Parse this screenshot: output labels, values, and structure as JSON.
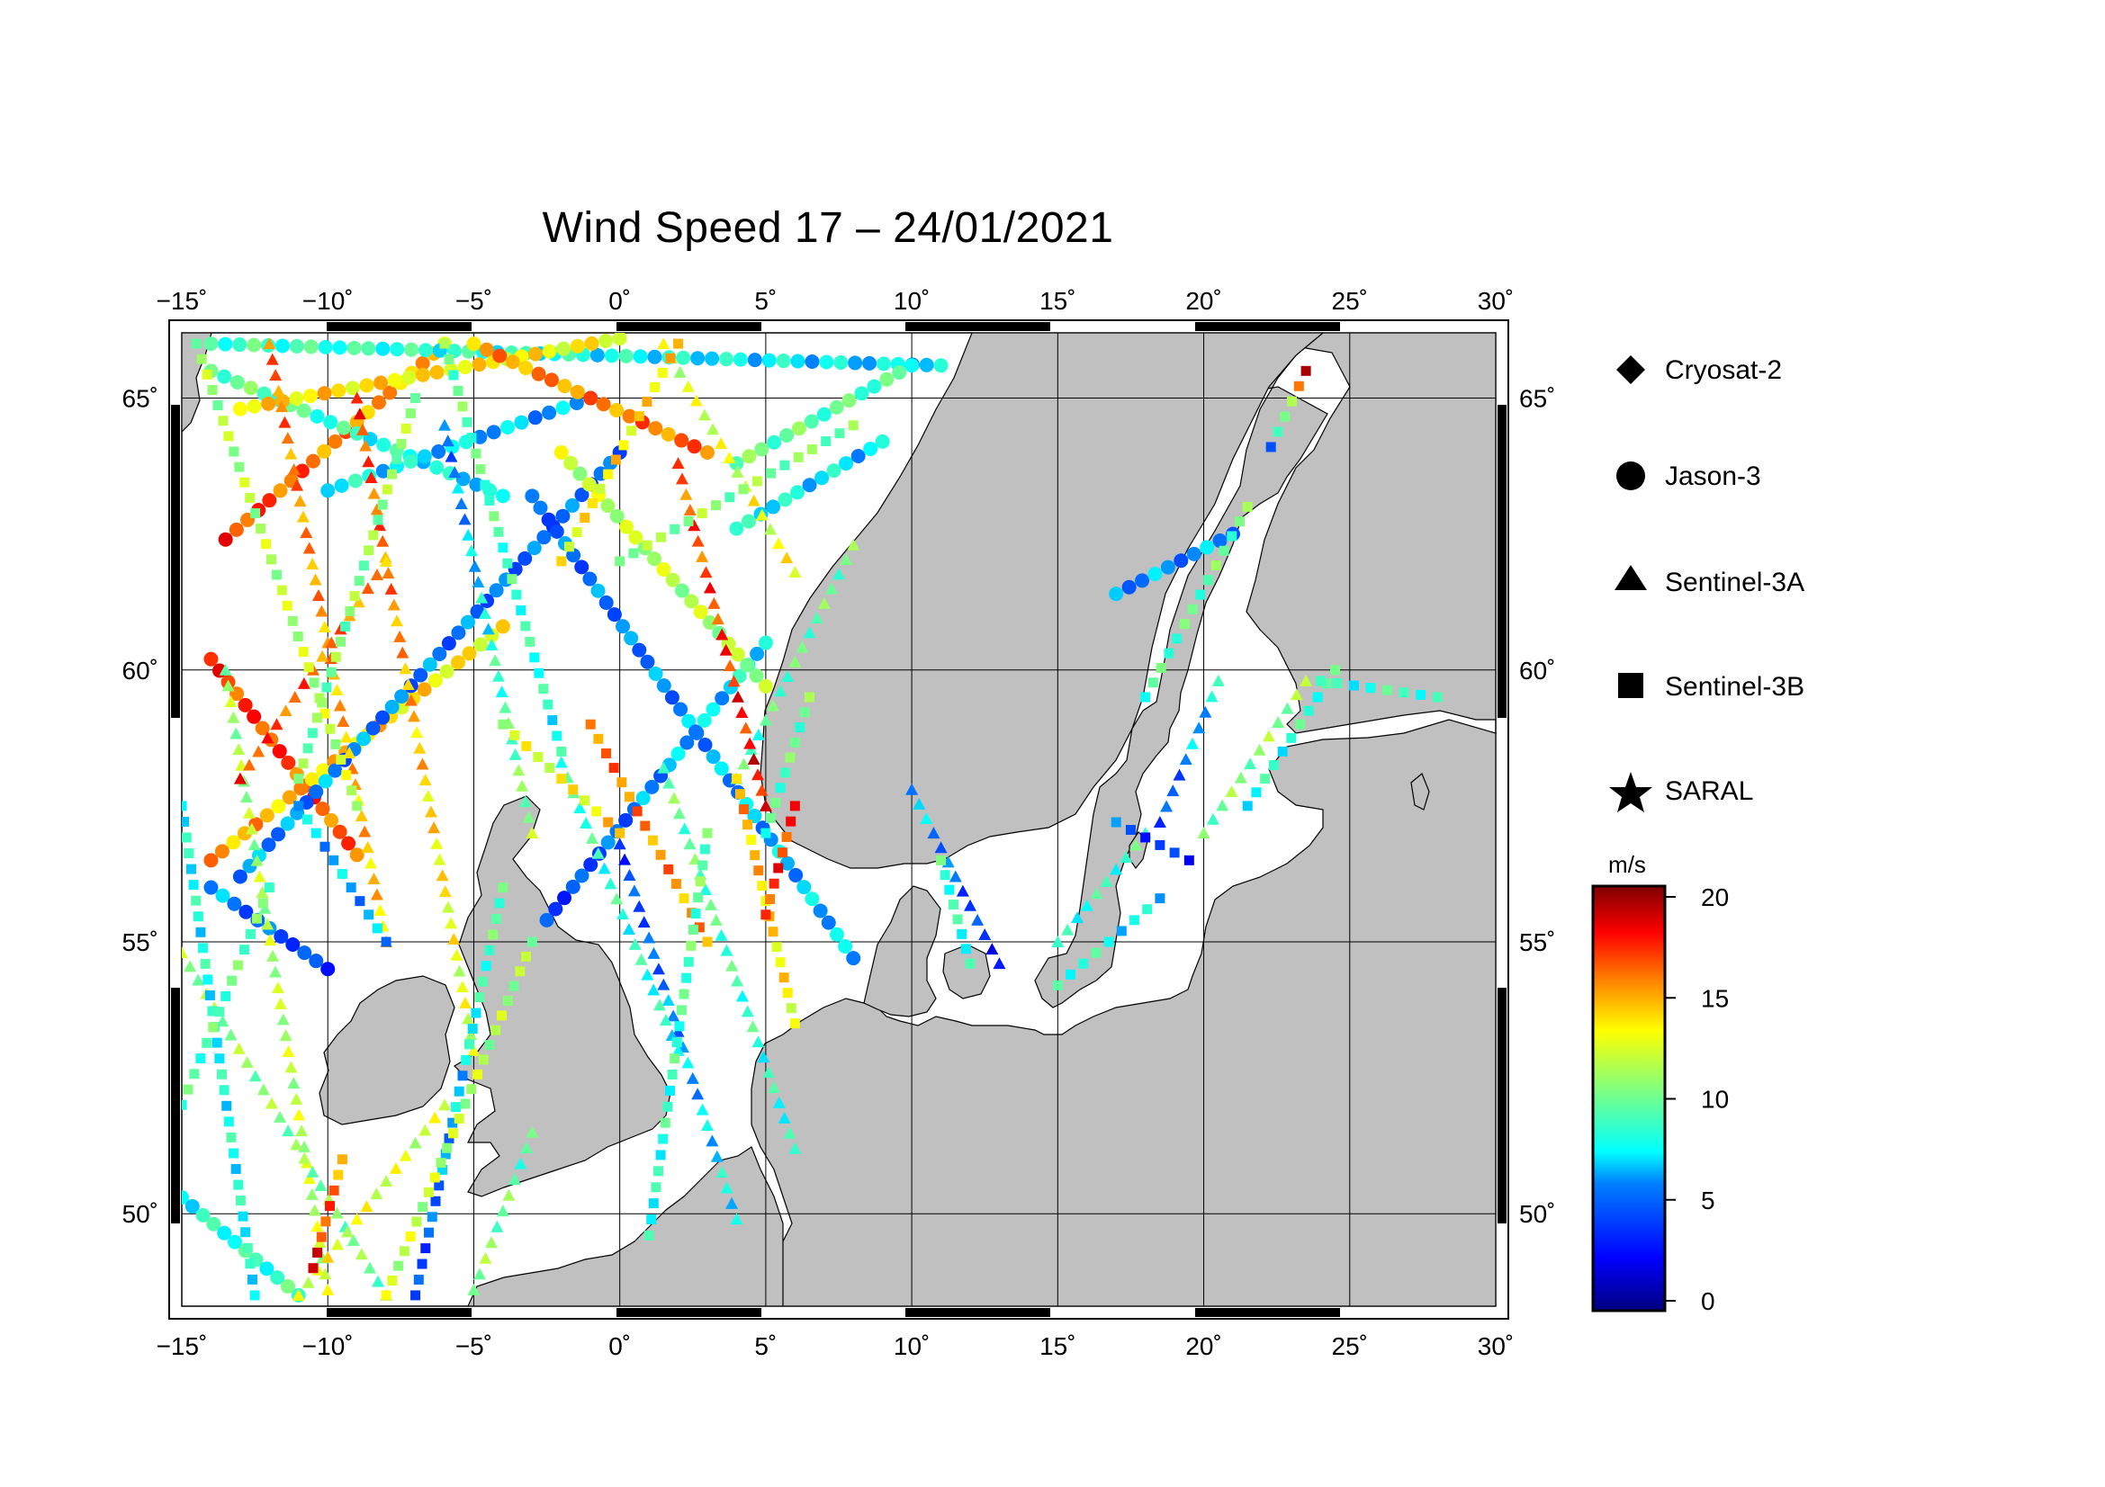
{
  "title": "Wind Speed 17 – 24/01/2021",
  "map": {
    "lon_range": [
      -15,
      30
    ],
    "lat_range": [
      48.3,
      66.2
    ],
    "lon_ticks": [
      -15,
      -10,
      -5,
      0,
      5,
      10,
      15,
      20,
      25,
      30
    ],
    "lon_tick_labels": [
      "−15˚",
      "−10˚",
      "−5˚",
      "0˚",
      "5˚",
      "10˚",
      "15˚",
      "20˚",
      "25˚",
      "30˚"
    ],
    "lat_ticks": [
      50,
      55,
      60,
      65
    ],
    "lat_tick_labels": [
      "50˚",
      "55˚",
      "60˚",
      "65˚"
    ],
    "land_color": "#c0c0c0",
    "sea_color": "#ffffff",
    "grid": true
  },
  "legend": {
    "items": [
      {
        "label": "Cryosat-2",
        "symbol": "diamond-icon"
      },
      {
        "label": "Jason-3",
        "symbol": "circle-icon"
      },
      {
        "label": "Sentinel-3A",
        "symbol": "triangle-icon"
      },
      {
        "label": "Sentinel-3B",
        "symbol": "square-icon"
      },
      {
        "label": "SARAL",
        "symbol": "star-icon"
      }
    ]
  },
  "colorbar": {
    "unit": "m/s",
    "min": 0,
    "max": 20,
    "tick_labels": [
      "20",
      "15",
      "10",
      "5",
      "0"
    ],
    "colors": [
      "#7f0000",
      "#ff0000",
      "#ff8000",
      "#ffff00",
      "#80ff80",
      "#00ffff",
      "#0080ff",
      "#0000ff",
      "#00007f"
    ]
  },
  "tracks": [
    {
      "sat": "Jason-3",
      "start": [
        -14,
        60.2
      ],
      "end": [
        -9,
        56.6
      ],
      "v0": 17,
      "v1": 16
    },
    {
      "sat": "Jason-3",
      "start": [
        -14,
        56.5
      ],
      "end": [
        -4,
        60.8
      ],
      "v0": 15,
      "v1": 13
    },
    {
      "sat": "Jason-3",
      "start": [
        -13.5,
        62.4
      ],
      "end": [
        -6,
        66.0
      ],
      "v0": 17,
      "v1": 14
    },
    {
      "sat": "Jason-3",
      "start": [
        -14,
        65.5
      ],
      "end": [
        -4,
        63.2
      ],
      "v0": 10,
      "v1": 7
    },
    {
      "sat": "Jason-3",
      "start": [
        -10,
        63.3
      ],
      "end": [
        -1,
        65.0
      ],
      "v0": 8,
      "v1": 6
    },
    {
      "sat": "Jason-3",
      "start": [
        -13,
        56.2
      ],
      "end": [
        0,
        64.0
      ],
      "v0": 6,
      "v1": 5
    },
    {
      "sat": "Jason-3",
      "start": [
        -14,
        56.0
      ],
      "end": [
        -10,
        54.5
      ],
      "v0": 6,
      "v1": 4
    },
    {
      "sat": "Jason-3",
      "start": [
        -3,
        63.2
      ],
      "end": [
        8,
        54.7
      ],
      "v0": 5,
      "v1": 7
    },
    {
      "sat": "Jason-3",
      "start": [
        -2.5,
        55.4
      ],
      "end": [
        5,
        60.5
      ],
      "v0": 4,
      "v1": 8
    },
    {
      "sat": "Jason-3",
      "start": [
        -14,
        66.0
      ],
      "end": [
        11,
        65.6
      ],
      "v0": 9,
      "v1": 7
    },
    {
      "sat": "Jason-3",
      "start": [
        -13,
        64.8
      ],
      "end": [
        0,
        66.1
      ],
      "v0": 14,
      "v1": 13
    },
    {
      "sat": "Jason-3",
      "start": [
        -5,
        66.0
      ],
      "end": [
        3,
        64.0
      ],
      "v0": 15,
      "v1": 16
    },
    {
      "sat": "Jason-3",
      "start": [
        4,
        63.8
      ],
      "end": [
        10,
        65.6
      ],
      "v0": 10,
      "v1": 9
    },
    {
      "sat": "Jason-3",
      "start": [
        4,
        62.6
      ],
      "end": [
        9,
        64.2
      ],
      "v0": 8,
      "v1": 7
    },
    {
      "sat": "Jason-3",
      "start": [
        -2,
        64.0
      ],
      "end": [
        5,
        59.7
      ],
      "v0": 12,
      "v1": 11
    },
    {
      "sat": "Jason-3",
      "start": [
        17,
        61.4
      ],
      "end": [
        21,
        62.5
      ],
      "v0": 6,
      "v1": 6
    },
    {
      "sat": "Jason-3",
      "start": [
        -15,
        50.3
      ],
      "end": [
        -11,
        48.5
      ],
      "v0": 8,
      "v1": 9
    },
    {
      "sat": "Sentinel-3A",
      "start": [
        -13.5,
        60.0
      ],
      "end": [
        -10,
        48.6
      ],
      "v0": 11,
      "v1": 12
    },
    {
      "sat": "Sentinel-3A",
      "start": [
        -12,
        66.0
      ],
      "end": [
        -8,
        55.0
      ],
      "v0": 16,
      "v1": 14
    },
    {
      "sat": "Sentinel-3A",
      "start": [
        -9,
        65.0
      ],
      "end": [
        -5,
        53.0
      ],
      "v0": 17,
      "v1": 12
    },
    {
      "sat": "Sentinel-3A",
      "start": [
        -6,
        64.5
      ],
      "end": [
        -3,
        57.0
      ],
      "v0": 5,
      "v1": 11
    },
    {
      "sat": "Sentinel-3A",
      "start": [
        -13,
        58.0
      ],
      "end": [
        -8,
        62.0
      ],
      "v0": 17,
      "v1": 15
    },
    {
      "sat": "Sentinel-3A",
      "start": [
        0,
        56.8
      ],
      "end": [
        4,
        49.9
      ],
      "v0": 4,
      "v1": 8
    },
    {
      "sat": "Sentinel-3A",
      "start": [
        1.5,
        58.2
      ],
      "end": [
        6,
        51.2
      ],
      "v0": 10,
      "v1": 8
    },
    {
      "sat": "Sentinel-3A",
      "start": [
        -2,
        58.3
      ],
      "end": [
        2,
        53.0
      ],
      "v0": 9,
      "v1": 8
    },
    {
      "sat": "Sentinel-3A",
      "start": [
        4,
        58.0
      ],
      "end": [
        8,
        62.3
      ],
      "v0": 9,
      "v1": 10
    },
    {
      "sat": "Sentinel-3A",
      "start": [
        2,
        63.8
      ],
      "end": [
        5,
        57.5
      ],
      "v0": 16,
      "v1": 18
    },
    {
      "sat": "Sentinel-3A",
      "start": [
        -15,
        54.8
      ],
      "end": [
        -8,
        48.5
      ],
      "v0": 11,
      "v1": 10
    },
    {
      "sat": "Sentinel-3A",
      "start": [
        -11,
        48.5
      ],
      "end": [
        -6,
        52.0
      ],
      "v0": 13,
      "v1": 12
    },
    {
      "sat": "Sentinel-3A",
      "start": [
        -5,
        48.6
      ],
      "end": [
        -3,
        51.5
      ],
      "v0": 11,
      "v1": 9
    },
    {
      "sat": "Sentinel-3A",
      "start": [
        10,
        57.8
      ],
      "end": [
        13,
        54.6
      ],
      "v0": 7,
      "v1": 3
    },
    {
      "sat": "Sentinel-3A",
      "start": [
        18.5,
        57.2
      ],
      "end": [
        20.5,
        59.8
      ],
      "v0": 4,
      "v1": 8
    },
    {
      "sat": "Sentinel-3A",
      "start": [
        15,
        55.0
      ],
      "end": [
        18,
        57.0
      ],
      "v0": 8,
      "v1": 9
    },
    {
      "sat": "Sentinel-3A",
      "start": [
        1.5,
        66.0
      ],
      "end": [
        6,
        61.8
      ],
      "v0": 12,
      "v1": 13
    },
    {
      "sat": "Sentinel-3A",
      "start": [
        20,
        57.0
      ],
      "end": [
        23.5,
        59.8
      ],
      "v0": 10,
      "v1": 11
    },
    {
      "sat": "Sentinel-3B",
      "start": [
        -15,
        57.5
      ],
      "end": [
        -12.5,
        48.5
      ],
      "v0": 8,
      "v1": 8
    },
    {
      "sat": "Sentinel-3B",
      "start": [
        -14.5,
        66.0
      ],
      "end": [
        -9,
        57.5
      ],
      "v0": 11,
      "v1": 12
    },
    {
      "sat": "Sentinel-3B",
      "start": [
        -11,
        57.5
      ],
      "end": [
        -8,
        55.0
      ],
      "v0": 7,
      "v1": 6
    },
    {
      "sat": "Sentinel-3B",
      "start": [
        -11,
        58.0
      ],
      "end": [
        -7,
        65.0
      ],
      "v0": 10,
      "v1": 11
    },
    {
      "sat": "Sentinel-3B",
      "start": [
        -6,
        66.0
      ],
      "end": [
        -2,
        58.5
      ],
      "v0": 10,
      "v1": 8
    },
    {
      "sat": "Sentinel-3B",
      "start": [
        -2,
        62.0
      ],
      "end": [
        2,
        66.0
      ],
      "v0": 13,
      "v1": 14
    },
    {
      "sat": "Sentinel-3B",
      "start": [
        -1,
        59.0
      ],
      "end": [
        3,
        55.0
      ],
      "v0": 16,
      "v1": 15
    },
    {
      "sat": "Sentinel-3B",
      "start": [
        4,
        58.0
      ],
      "end": [
        6,
        53.5
      ],
      "v0": 15,
      "v1": 13
    },
    {
      "sat": "Sentinel-3B",
      "start": [
        5,
        57.0
      ],
      "end": [
        6.5,
        59.5
      ],
      "v0": 9,
      "v1": 10
    },
    {
      "sat": "Sentinel-3B",
      "start": [
        -7,
        48.5
      ],
      "end": [
        -4,
        56.0
      ],
      "v0": 4,
      "v1": 10
    },
    {
      "sat": "Sentinel-3B",
      "start": [
        -8,
        48.5
      ],
      "end": [
        -3,
        55.0
      ],
      "v0": 12,
      "v1": 11
    },
    {
      "sat": "Sentinel-3B",
      "start": [
        1,
        49.6
      ],
      "end": [
        3,
        57.0
      ],
      "v0": 8,
      "v1": 10
    },
    {
      "sat": "Sentinel-3B",
      "start": [
        5,
        55.5
      ],
      "end": [
        6,
        57.5
      ],
      "v0": 17,
      "v1": 17
    },
    {
      "sat": "Sentinel-3B",
      "start": [
        21.5,
        57.5
      ],
      "end": [
        24.5,
        60.0
      ],
      "v0": 8,
      "v1": 9
    },
    {
      "sat": "Sentinel-3B",
      "start": [
        18,
        59.5
      ],
      "end": [
        21.5,
        63.0
      ],
      "v0": 9,
      "v1": 10
    },
    {
      "sat": "Sentinel-3B",
      "start": [
        22.3,
        64.1
      ],
      "end": [
        23.5,
        65.5
      ],
      "v0": 5,
      "v1": 18
    },
    {
      "sat": "Sentinel-3B",
      "start": [
        24,
        59.8
      ],
      "end": [
        28,
        59.5
      ],
      "v0": 8,
      "v1": 9
    },
    {
      "sat": "Sentinel-3B",
      "start": [
        11,
        56.5
      ],
      "end": [
        12,
        54.6
      ],
      "v0": 9,
      "v1": 8
    },
    {
      "sat": "Sentinel-3B",
      "start": [
        15,
        54.2
      ],
      "end": [
        18.5,
        55.8
      ],
      "v0": 9,
      "v1": 7
    },
    {
      "sat": "Sentinel-3B",
      "start": [
        0,
        62.0
      ],
      "end": [
        8,
        64.5
      ],
      "v0": 11,
      "v1": 10
    },
    {
      "sat": "Sentinel-3B",
      "start": [
        -4,
        59.0
      ],
      "end": [
        0,
        57.0
      ],
      "v0": 12,
      "v1": 14
    },
    {
      "sat": "Sentinel-3B",
      "start": [
        -15,
        52.0
      ],
      "end": [
        -12,
        56.0
      ],
      "v0": 9,
      "v1": 10
    },
    {
      "sat": "Sentinel-3B",
      "start": [
        -10.5,
        49.0
      ],
      "end": [
        -9.5,
        51.0
      ],
      "v0": 18,
      "v1": 15
    },
    {
      "sat": "Sentinel-3B",
      "start": [
        17,
        57.2
      ],
      "end": [
        19.5,
        56.5
      ],
      "v0": 5,
      "v1": 3
    }
  ]
}
